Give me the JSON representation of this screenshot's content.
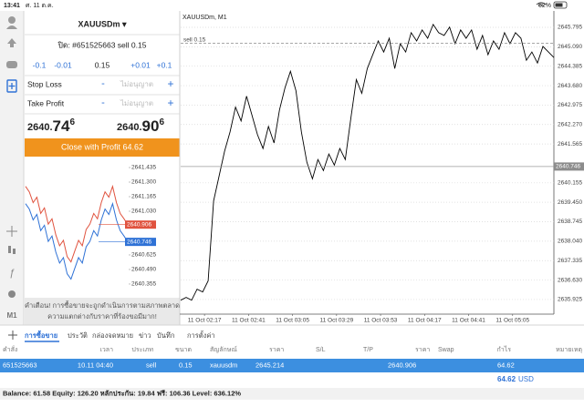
{
  "status_bar": {
    "time": "13:41",
    "date": "ศ. 11 ต.ค.",
    "battery": "62%"
  },
  "sidebar": {
    "timeframe": "M1"
  },
  "order_panel": {
    "symbol": "XAUUSDm ▾",
    "ticket": "ปิด: #651525663 sell 0.15",
    "volume_buttons": [
      "-0.1",
      "-0.01",
      "0.15",
      "+0.01",
      "+0.1"
    ],
    "stop_loss": {
      "label": "Stop Loss",
      "minus": "-",
      "value": "ไม่อนุญาต",
      "plus": "+"
    },
    "take_profit": {
      "label": "Take Profit",
      "minus": "-",
      "value": "ไม่อนุญาต",
      "plus": "+"
    },
    "bid": {
      "prefix": "2640.",
      "big": "74",
      "sup": "6"
    },
    "ask": {
      "prefix": "2640.",
      "big": "90",
      "sup": "6"
    },
    "close_button": "Close with Profit 64.62",
    "warning": [
      "คำเตือน! การซื้อขายจะถูกดำเนินการตามสภาพตลาด",
      "ความแตกต่างกับราคาที่ร้องขอมีมาก!"
    ]
  },
  "chart_data": [
    {
      "type": "line",
      "series": [
        {
          "color": "#e0533f",
          "values": [
            2641.26,
            2641.21,
            2641.11,
            2641.16,
            2641.01,
            2641.06,
            2640.91,
            2640.96,
            2640.81,
            2640.71,
            2640.76,
            2640.61,
            2640.56,
            2640.66,
            2640.76,
            2640.71,
            2640.86,
            2640.91,
            2641.01,
            2640.96,
            2641.11,
            2641.21,
            2641.16,
            2641.26,
            2641.11,
            2641.01,
            2640.96,
            2640.906
          ]
        },
        {
          "color": "#2f72d6",
          "values": [
            2641.1,
            2641.05,
            2640.95,
            2641.0,
            2640.85,
            2640.9,
            2640.75,
            2640.8,
            2640.65,
            2640.55,
            2640.6,
            2640.45,
            2640.4,
            2640.5,
            2640.6,
            2640.55,
            2640.7,
            2640.75,
            2640.85,
            2640.8,
            2640.95,
            2641.05,
            2641.0,
            2641.1,
            2640.95,
            2640.85,
            2640.8,
            2640.746
          ]
        }
      ],
      "ylim": [
        2640.245,
        2641.511
      ],
      "yticks": [
        2641.435,
        {
          "value": 2641.3,
          "label": "2641.300"
        },
        2641.165,
        {
          "value": 2641.03,
          "label": "2641.030"
        },
        2640.625,
        {
          "value": 2640.49,
          "label": "2640.490"
        },
        2640.355
      ],
      "price_tags": [
        {
          "value": 2640.906,
          "color": "#e0533f"
        },
        {
          "value": 2640.746,
          "color": "#2f72d6"
        }
      ]
    },
    {
      "type": "line",
      "title": "XAUUSDm, M1",
      "color": "#000000",
      "x_labels": [
        "11 Oct 02:17",
        "11 Oct 02:41",
        "11 Oct 03:05",
        "11 Oct 03:29",
        "11 Oct 03:53",
        "11 Oct 04:17",
        "11 Oct 04:41",
        "11 Oct 05:05"
      ],
      "values": [
        2635.9,
        2636.0,
        2635.9,
        2636.3,
        2636.2,
        2636.6,
        2639.5,
        2640.4,
        2641.3,
        2642.0,
        2642.9,
        2642.4,
        2643.3,
        2642.6,
        2641.9,
        2641.4,
        2642.2,
        2641.6,
        2642.8,
        2643.6,
        2644.2,
        2643.5,
        2642.0,
        2640.9,
        2640.3,
        2641.0,
        2640.6,
        2641.2,
        2640.8,
        2641.4,
        2641.0,
        2642.5,
        2643.9,
        2643.4,
        2644.3,
        2644.8,
        2645.3,
        2644.9,
        2645.4,
        2644.3,
        2645.2,
        2644.9,
        2645.6,
        2645.3,
        2645.7,
        2645.4,
        2645.9,
        2645.6,
        2645.5,
        2645.8,
        2645.2,
        2645.7,
        2645.4,
        2645.7,
        2645.0,
        2645.5,
        2644.8,
        2645.3,
        2645.0,
        2645.6,
        2645.2,
        2645.6,
        2645.4,
        2644.6,
        2644.9,
        2644.5,
        2645.1,
        2644.9,
        2644.7
      ],
      "ylim": [
        2635.46,
        2646.29
      ],
      "yticks": [
        2645.795,
        {
          "value": 2645.09,
          "label": "2645.090"
        },
        2644.385,
        {
          "value": 2643.68,
          "label": "2643.680"
        },
        2642.975,
        {
          "value": 2642.27,
          "label": "2642.270"
        },
        2641.565,
        2640.155,
        {
          "value": 2639.45,
          "label": "2639.450"
        },
        2638.745,
        {
          "value": 2638.04,
          "label": "2638.040"
        },
        2637.335,
        {
          "value": 2636.63,
          "label": "2636.630"
        },
        2635.925
      ],
      "grid": true,
      "current_price": 2640.746,
      "order_line": {
        "label": "sell 0.15",
        "value": 2645.214
      }
    }
  ],
  "tabs": [
    "การซื้อขาย",
    "ประวัติ",
    "กล่องจดหมาย",
    "ข่าว",
    "บันทึก",
    "การตั้งค่า"
  ],
  "table": {
    "headers": [
      "คำสั่ง",
      "เวลา",
      "ประเภท",
      "ขนาด",
      "สัญลักษณ์",
      "ราคา",
      "S/L",
      "T/P",
      "ราคา",
      "Swap",
      "กำไร",
      "หมายเหตุ"
    ],
    "row": {
      "order": "651525663",
      "time": "10.11 04:40",
      "type": "sell",
      "volume": "0.15",
      "symbol": "xauusdm",
      "open_price": "2645.214",
      "price": "2640.906",
      "profit": "64.62"
    },
    "total": {
      "profit": "64.62",
      "currency": "USD"
    }
  },
  "balance_bar": "Balance: 61.58 Equity: 126.20 หลักประกัน: 19.84 ฟรี: 106.36 Level: 636.12%"
}
